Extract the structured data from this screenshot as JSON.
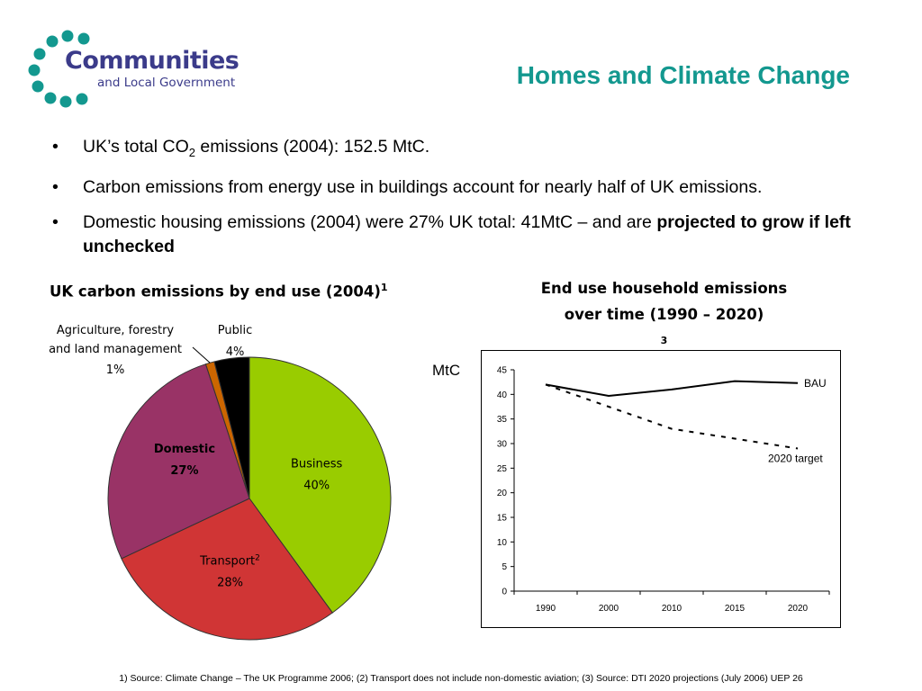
{
  "logo": {
    "line1": "Communities",
    "line2": "and Local Government"
  },
  "title": "Homes and Climate Change",
  "bullets": [
    {
      "pre": "UK’s total CO",
      "sub": "2",
      "post": " emissions (2004): 152.5 MtC."
    },
    {
      "text": "Carbon emissions from energy use in buildings account for nearly half of UK emissions."
    },
    {
      "text": "Domestic housing emissions (2004) were 27% UK total: 41MtC – and are ",
      "bold": "projected to grow if left unchecked"
    }
  ],
  "bullet_symbol": "•",
  "footnote": "1) Source: Climate Change – The UK Programme 2006; (2) Transport does not include non-domestic aviation; (3) Source: DTI 2020 projections (July 2006) UEP 26",
  "chart_data": [
    {
      "type": "pie",
      "title": "UK carbon emissions by end use (2004)",
      "title_sup": "1",
      "slices": [
        {
          "label": "Business",
          "value": 40,
          "display": "40%",
          "color": "#99cc00"
        },
        {
          "label": "Transport",
          "label_sup": "2",
          "value": 28,
          "display": "28%",
          "color": "#d03535"
        },
        {
          "label": "Domestic",
          "value": 27,
          "display": "27%",
          "color": "#993366",
          "bold": true
        },
        {
          "label_lines": [
            "Agriculture, forestry",
            "and land management"
          ],
          "value": 1,
          "display": "1%",
          "color": "#cc6600"
        },
        {
          "label": "Public",
          "value": 4,
          "display": "4%",
          "color": "#000000"
        }
      ]
    },
    {
      "type": "line",
      "title_lines": [
        "End use household emissions",
        "over time (1990 – 2020)"
      ],
      "title_sup": "3",
      "ylabel": "MtC",
      "x": [
        "1990",
        "2000",
        "2010",
        "2015",
        "2020"
      ],
      "ylim": [
        0,
        45
      ],
      "yticks": [
        "0",
        "5",
        "10",
        "15",
        "20",
        "25",
        "30",
        "35",
        "40",
        "45"
      ],
      "grid": false,
      "series": [
        {
          "name": "BAU",
          "values": [
            42,
            39.7,
            41,
            42.7,
            42.3
          ],
          "style": "solid"
        },
        {
          "name": "2020 target",
          "values": [
            42,
            37.5,
            33,
            31,
            29
          ],
          "style": "dashed"
        }
      ]
    }
  ]
}
